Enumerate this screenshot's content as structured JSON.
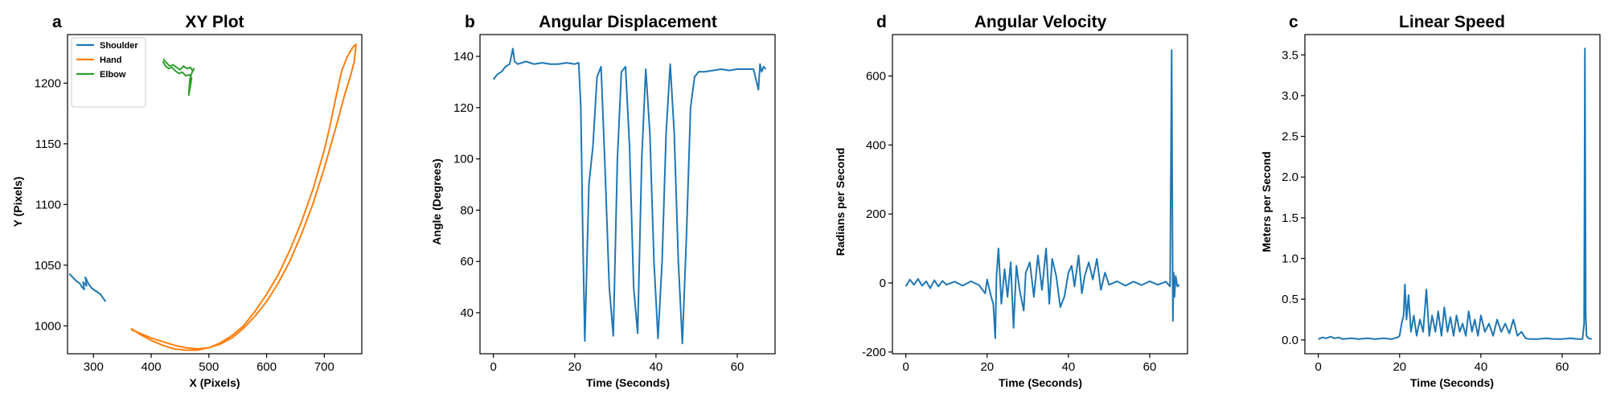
{
  "colors": {
    "blue": "#1f77b4",
    "orange": "#ff7f0e",
    "green": "#2ca02c"
  },
  "chart_data": [
    {
      "letter": "a",
      "type": "line",
      "title": "XY Plot",
      "xlabel": "X (Pixels)",
      "ylabel": "Y (Pixels)",
      "xlim": [
        255,
        765
      ],
      "ylim": [
        977,
        1240
      ],
      "xticks": [
        300,
        400,
        500,
        600,
        700
      ],
      "yticks": [
        1000,
        1050,
        1100,
        1150,
        1200
      ],
      "legend": "top-left",
      "series": [
        {
          "name": "Shoulder",
          "color": "#1f77b4",
          "x": [
            258,
            264,
            270,
            276,
            280,
            284,
            282,
            288,
            286,
            292,
            297,
            300,
            306,
            312,
            318,
            321
          ],
          "y": [
            1043,
            1040,
            1037,
            1035,
            1032,
            1030,
            1036,
            1033,
            1040,
            1034,
            1031,
            1030,
            1028,
            1026,
            1022,
            1020
          ]
        },
        {
          "name": "Hand",
          "color": "#ff7f0e",
          "x": [
            365,
            380,
            400,
            420,
            440,
            460,
            480,
            500,
            520,
            540,
            560,
            580,
            600,
            620,
            640,
            660,
            680,
            700,
            710,
            720,
            730,
            740,
            750,
            755,
            752,
            745,
            735,
            725,
            715,
            700,
            680,
            660,
            640,
            620,
            600,
            580,
            560,
            540,
            520,
            500,
            480,
            460,
            440,
            420,
            400,
            380,
            365
          ],
          "y": [
            998,
            993,
            988,
            984,
            981,
            980,
            980,
            982,
            986,
            992,
            1000,
            1012,
            1026,
            1042,
            1062,
            1085,
            1112,
            1145,
            1165,
            1188,
            1210,
            1222,
            1230,
            1232,
            1218,
            1205,
            1190,
            1172,
            1155,
            1130,
            1100,
            1075,
            1053,
            1035,
            1020,
            1008,
            998,
            990,
            985,
            982,
            981,
            982,
            984,
            987,
            990,
            994,
            997
          ]
        },
        {
          "name": "Elbow",
          "color": "#2ca02c",
          "x": [
            420,
            425,
            430,
            436,
            442,
            448,
            454,
            460,
            466,
            470,
            468,
            465,
            466,
            467,
            470,
            474,
            472,
            468,
            462,
            456,
            450,
            444,
            438,
            432,
            426,
            421
          ],
          "y": [
            1218,
            1214,
            1212,
            1213,
            1210,
            1208,
            1209,
            1206,
            1207,
            1204,
            1198,
            1190,
            1196,
            1203,
            1208,
            1212,
            1210,
            1213,
            1212,
            1214,
            1211,
            1213,
            1215,
            1214,
            1217,
            1220
          ]
        }
      ]
    },
    {
      "letter": "b",
      "type": "line",
      "title": "Angular Displacement",
      "xlabel": "Time (Seconds)",
      "ylabel": "Angle (Degrees)",
      "xlim": [
        -3.3,
        69.3
      ],
      "ylim": [
        24,
        148.5
      ],
      "xticks": [
        0,
        20,
        40,
        60
      ],
      "yticks": [
        40,
        60,
        80,
        100,
        120,
        140
      ],
      "series": [
        {
          "name": "",
          "color": "#1f77b4",
          "x": [
            0,
            1,
            2,
            3,
            4,
            4.8,
            5.2,
            6,
            8,
            10,
            12,
            14,
            16,
            18,
            20,
            21,
            21.5,
            22,
            22.5,
            23.5,
            24.5,
            25.5,
            26.5,
            27.5,
            28.5,
            29.5,
            30.5,
            31.5,
            32.5,
            33.5,
            34.5,
            35.5,
            36.5,
            37.5,
            38.5,
            39.5,
            40.5,
            41.5,
            42.5,
            43.5,
            44.5,
            45.5,
            46.5,
            47.5,
            48.5,
            49.5,
            50.5,
            52,
            54,
            56,
            58,
            60,
            62,
            64,
            65.2,
            65.6,
            66,
            66.5,
            67
          ],
          "y": [
            131,
            133,
            134,
            136,
            137,
            143,
            138,
            137,
            138,
            137,
            137.5,
            137,
            137,
            137.5,
            137,
            137.5,
            120,
            70,
            29,
            90,
            105,
            132,
            136,
            95,
            50,
            31,
            100,
            134,
            136,
            105,
            50,
            32,
            100,
            135,
            110,
            60,
            30,
            60,
            110,
            137,
            110,
            60,
            28,
            70,
            120,
            132,
            134,
            134,
            134.5,
            135,
            134.5,
            135,
            135,
            135,
            127,
            137,
            134,
            136,
            135
          ]
        }
      ]
    },
    {
      "letter": "d",
      "type": "line",
      "title": "Angular Velocity",
      "xlabel": "Time (Seconds)",
      "ylabel": "Radians per Second",
      "xlim": [
        -3.3,
        69.3
      ],
      "ylim": [
        -205,
        720
      ],
      "xticks": [
        0,
        20,
        40,
        60
      ],
      "yticks": [
        -200,
        0,
        200,
        400,
        600
      ],
      "series": [
        {
          "name": "",
          "color": "#1f77b4",
          "x": [
            0,
            1,
            2,
            3,
            4,
            5,
            6,
            7,
            8,
            9,
            10,
            12,
            14,
            16,
            18,
            19.5,
            20,
            21,
            21.5,
            22,
            22.3,
            22.8,
            23.5,
            24.3,
            25,
            25.8,
            26.5,
            27.2,
            28,
            29,
            29.5,
            30.5,
            31.5,
            32.5,
            33.5,
            34.5,
            35.3,
            36,
            37,
            38,
            39,
            40,
            40.8,
            41.5,
            42.5,
            43.3,
            44,
            45,
            46,
            47,
            48,
            49,
            50,
            52,
            54,
            56,
            58,
            60,
            62,
            64,
            65,
            65.4,
            65.7,
            65.9,
            66.1,
            66.4,
            66.8,
            67.3
          ],
          "y": [
            -10,
            10,
            -5,
            12,
            -8,
            5,
            -15,
            8,
            -10,
            6,
            -5,
            4,
            -8,
            5,
            -6,
            -30,
            10,
            -40,
            -60,
            -160,
            20,
            100,
            -60,
            40,
            -40,
            60,
            -130,
            50,
            -20,
            -80,
            30,
            60,
            -40,
            80,
            -20,
            100,
            -60,
            70,
            20,
            -70,
            -40,
            30,
            50,
            -10,
            80,
            -30,
            20,
            60,
            10,
            70,
            -20,
            30,
            -5,
            5,
            -8,
            4,
            -6,
            5,
            -5,
            4,
            -10,
            675,
            -110,
            30,
            -40,
            20,
            -10,
            -5
          ]
        }
      ]
    },
    {
      "letter": "c",
      "type": "line",
      "title": "Linear Speed",
      "xlabel": "Time (Seconds)",
      "ylabel": "Meters per Second",
      "xlim": [
        -3.3,
        69.3
      ],
      "ylim": [
        -0.17,
        3.75
      ],
      "xticks": [
        0,
        20,
        40,
        60
      ],
      "yticks": [
        0.0,
        0.5,
        1.0,
        1.5,
        2.0,
        2.5,
        3.0,
        3.5
      ],
      "series": [
        {
          "name": "",
          "color": "#1f77b4",
          "x": [
            0,
            1,
            2,
            3,
            4,
            5,
            6,
            8,
            10,
            12,
            14,
            16,
            18,
            19.5,
            20,
            20.5,
            21,
            21.3,
            21.7,
            22.2,
            22.8,
            23.5,
            24.2,
            25,
            25.8,
            26.6,
            27.3,
            28,
            28.8,
            29.5,
            30.3,
            31,
            31.8,
            32.5,
            33.3,
            34,
            34.8,
            35.5,
            36.3,
            37,
            37.8,
            38.5,
            39.3,
            40,
            41,
            42,
            43,
            44,
            45,
            46,
            47,
            48,
            49,
            50,
            51,
            52,
            54,
            56,
            58,
            60,
            62,
            64,
            65,
            65.4,
            65.6,
            65.8,
            66,
            66.5,
            67.3
          ],
          "y": [
            0.01,
            0.03,
            0.02,
            0.04,
            0.02,
            0.03,
            0.01,
            0.02,
            0.01,
            0.02,
            0.01,
            0.02,
            0.01,
            0.03,
            0.05,
            0.2,
            0.3,
            0.68,
            0.25,
            0.55,
            0.1,
            0.3,
            0.05,
            0.25,
            0.1,
            0.62,
            0.05,
            0.3,
            0.1,
            0.35,
            0.05,
            0.4,
            0.1,
            0.28,
            0.05,
            0.3,
            0.1,
            0.2,
            0.05,
            0.35,
            0.1,
            0.25,
            0.05,
            0.3,
            0.1,
            0.2,
            0.05,
            0.25,
            0.1,
            0.2,
            0.08,
            0.25,
            0.05,
            0.1,
            0.02,
            0.01,
            0.01,
            0.02,
            0.01,
            0.01,
            0.02,
            0.01,
            0.01,
            0.2,
            3.58,
            0.3,
            0.05,
            0.02,
            0.01
          ]
        }
      ]
    }
  ]
}
